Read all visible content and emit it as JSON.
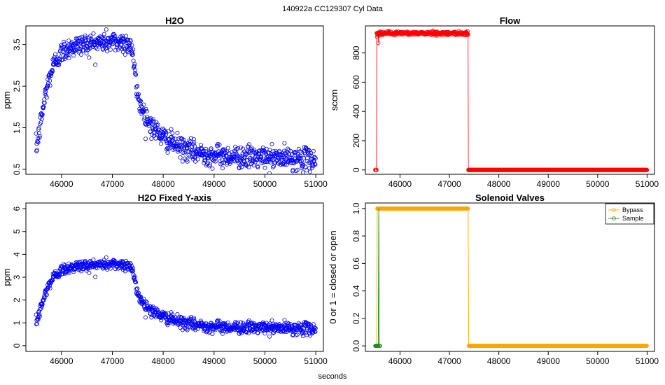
{
  "page": {
    "title": "140922a    CC129307   Cyl Data",
    "outer_xlabel": "seconds"
  },
  "colors": {
    "h2o": "#0000ff",
    "flow": "#ff0000",
    "bypass": "#ffa500",
    "sample": "#228b22"
  },
  "chart_data": [
    {
      "id": "h2o",
      "type": "scatter",
      "title": "H2O",
      "xlabel": "",
      "ylabel": "ppm",
      "xlim": [
        45300,
        51150
      ],
      "ylim": [
        0.38,
        3.95
      ],
      "xticks": [
        46000,
        47000,
        48000,
        49000,
        50000,
        51000
      ],
      "xtick_labels": [
        "46000",
        "47000",
        "48000",
        "49000",
        "50000",
        "51000"
      ],
      "yticks": [
        0.5,
        1.5,
        2.5,
        3.5
      ],
      "ytick_labels": [
        "0.5",
        "1.5",
        "2.5",
        "3.5"
      ],
      "grid": false,
      "x_start": 45500,
      "x_end": 51000,
      "x_step": 6,
      "curve": [
        [
          45500,
          1.0
        ],
        [
          45550,
          1.3
        ],
        [
          45600,
          1.7
        ],
        [
          45650,
          2.05
        ],
        [
          45700,
          2.4
        ],
        [
          45750,
          2.65
        ],
        [
          45800,
          2.85
        ],
        [
          45850,
          3.02
        ],
        [
          45900,
          3.15
        ],
        [
          46000,
          3.3
        ],
        [
          46100,
          3.4
        ],
        [
          46200,
          3.45
        ],
        [
          46400,
          3.5
        ],
        [
          46600,
          3.53
        ],
        [
          46800,
          3.56
        ],
        [
          47000,
          3.57
        ],
        [
          47200,
          3.55
        ],
        [
          47350,
          3.52
        ],
        [
          47400,
          3.3
        ],
        [
          47450,
          2.7
        ],
        [
          47500,
          2.25
        ],
        [
          47600,
          1.9
        ],
        [
          47700,
          1.68
        ],
        [
          47800,
          1.5
        ],
        [
          47900,
          1.38
        ],
        [
          48000,
          1.27
        ],
        [
          48200,
          1.12
        ],
        [
          48400,
          1.0
        ],
        [
          48600,
          0.92
        ],
        [
          48800,
          0.87
        ],
        [
          49000,
          0.84
        ],
        [
          49500,
          0.8
        ],
        [
          50000,
          0.78
        ],
        [
          50500,
          0.76
        ],
        [
          51000,
          0.74
        ]
      ],
      "noise": 0.13
    },
    {
      "id": "flow",
      "type": "scatter",
      "title": "Flow",
      "xlabel": "",
      "ylabel": "sccm",
      "xlim": [
        45300,
        51150
      ],
      "ylim": [
        -30,
        985
      ],
      "xticks": [
        46000,
        47000,
        48000,
        49000,
        50000,
        51000
      ],
      "xtick_labels": [
        "46000",
        "47000",
        "48000",
        "49000",
        "50000",
        "51000"
      ],
      "yticks": [
        0,
        200,
        400,
        600,
        800
      ],
      "ytick_labels": [
        "0",
        "200",
        "400",
        "600",
        "800"
      ],
      "grid": false,
      "x_start": 45500,
      "x_end": 51000,
      "x_step": 6,
      "segments": [
        {
          "from": 45500,
          "to": 45530,
          "value": 0
        },
        {
          "from": 45530,
          "to": 47380,
          "value": 935
        },
        {
          "from": 47380,
          "to": 51000,
          "value": 0
        }
      ],
      "dips": [
        [
          45540,
          910
        ],
        [
          45560,
          870
        ],
        [
          45580,
          920
        ],
        [
          45600,
          945
        ]
      ],
      "noise": 6
    },
    {
      "id": "h2o-fixed",
      "type": "scatter",
      "title": "H2O Fixed Y-axis",
      "xlabel": "",
      "ylabel": "ppm",
      "xlim": [
        45300,
        51150
      ],
      "ylim": [
        -0.25,
        6.25
      ],
      "xticks": [
        46000,
        47000,
        48000,
        49000,
        50000,
        51000
      ],
      "xtick_labels": [
        "46000",
        "47000",
        "48000",
        "49000",
        "50000",
        "51000"
      ],
      "yticks": [
        0,
        1,
        2,
        3,
        4,
        5,
        6
      ],
      "ytick_labels": [
        "0",
        "1",
        "2",
        "3",
        "4",
        "5",
        "6"
      ],
      "grid": false,
      "series_ref": "h2o"
    },
    {
      "id": "solenoid",
      "type": "line",
      "title": "Solenoid Valves",
      "xlabel": "",
      "ylabel": "0 or 1 = closed or open",
      "xlim": [
        45300,
        51150
      ],
      "ylim": [
        -0.04,
        1.04
      ],
      "xticks": [
        46000,
        47000,
        48000,
        49000,
        50000,
        51000
      ],
      "xtick_labels": [
        "46000",
        "47000",
        "48000",
        "49000",
        "50000",
        "51000"
      ],
      "yticks": [
        0.0,
        0.2,
        0.4,
        0.6,
        0.8,
        1.0
      ],
      "ytick_labels": [
        "0.0",
        "0.2",
        "0.4",
        "0.6",
        "0.8",
        "1.0"
      ],
      "grid": false,
      "legend_position": "top-right",
      "series": [
        {
          "name": "Bypass",
          "color_key": "bypass",
          "points": [
            [
              45500,
              0
            ],
            [
              45530,
              0
            ],
            [
              45540,
              1
            ],
            [
              47380,
              1
            ],
            [
              47390,
              0
            ],
            [
              51000,
              0
            ]
          ]
        },
        {
          "name": "Sample",
          "color_key": "sample",
          "points": [
            [
              45500,
              0
            ],
            [
              45560,
              0
            ],
            [
              45570,
              1
            ],
            [
              45580,
              0
            ],
            [
              45600,
              0
            ]
          ]
        }
      ]
    }
  ]
}
